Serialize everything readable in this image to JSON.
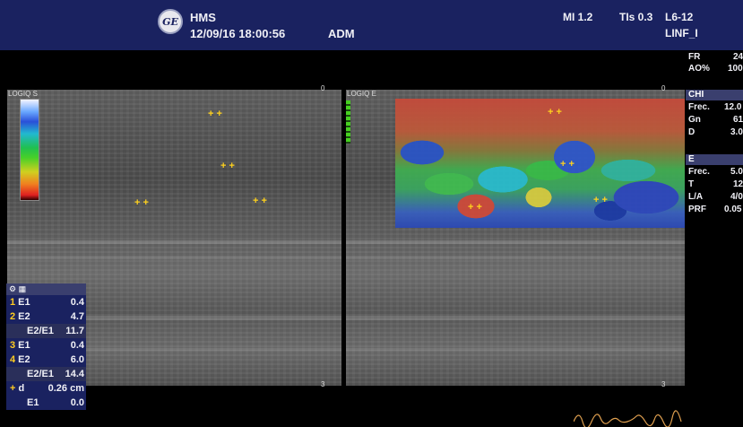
{
  "header": {
    "brand_icon": "ge-logo",
    "site": "HMS",
    "datetime": "12/09/16 18:00:56",
    "operator": "ADM",
    "mi": "MI 1.2",
    "tis": "TIs 0.3",
    "probe": "L6-12",
    "preset": "LINF_I"
  },
  "top_params": [
    {
      "label": "FR",
      "value": "24"
    },
    {
      "label": "AO%",
      "value": "100"
    }
  ],
  "left_panel": {
    "corner_label": "LOGIQ S",
    "depth_top": "0",
    "depth_bottom": "3"
  },
  "right_panel": {
    "corner_label": "LOGIQ E",
    "depth_top": "0",
    "depth_bottom": "3"
  },
  "chi_section": {
    "title": "CHI",
    "params": [
      {
        "label": "Frec.",
        "value": "12.0"
      },
      {
        "label": "Gn",
        "value": "61"
      },
      {
        "label": "D",
        "value": "3.0"
      }
    ]
  },
  "e_section": {
    "title": "E",
    "params": [
      {
        "label": "Frec.",
        "value": "5.0"
      },
      {
        "label": "T",
        "value": "12"
      },
      {
        "label": "L/A",
        "value": "4/0"
      },
      {
        "label": "PRF",
        "value": "0.05"
      }
    ]
  },
  "measurements": {
    "header_icon": "settings-icon",
    "rows": [
      {
        "num": "1",
        "label": "E1",
        "value": "0.4",
        "style": "dark"
      },
      {
        "num": "2",
        "label": "E2",
        "value": "4.7",
        "style": "dark"
      },
      {
        "num": "",
        "label": "E2/E1",
        "value": "11.7",
        "style": "mid"
      },
      {
        "num": "3",
        "label": "E1",
        "value": "0.4",
        "style": "dark"
      },
      {
        "num": "4",
        "label": "E2",
        "value": "6.0",
        "style": "dark"
      },
      {
        "num": "",
        "label": "E2/E1",
        "value": "14.4",
        "style": "mid"
      },
      {
        "num": "+",
        "label": "d",
        "value": "0.26 cm",
        "style": "dark"
      },
      {
        "num": "",
        "label": "E1",
        "value": "0.0",
        "style": "dark"
      }
    ]
  },
  "colors": {
    "header_bg": "#1a2260",
    "marker": "#ffd21e",
    "table_bg": "#1a2260"
  }
}
